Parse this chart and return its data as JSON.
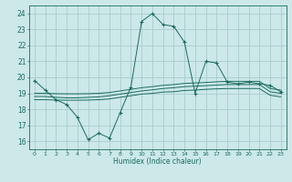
{
  "xlabel": "Humidex (Indice chaleur)",
  "background_color": "#cce8e8",
  "grid_color": "#aacccc",
  "line_color": "#1a6b5e",
  "xlim": [
    -0.5,
    23.5
  ],
  "ylim": [
    15.5,
    24.5
  ],
  "yticks": [
    16,
    17,
    18,
    19,
    20,
    21,
    22,
    23,
    24
  ],
  "xticks": [
    0,
    1,
    2,
    3,
    4,
    5,
    6,
    7,
    8,
    9,
    10,
    11,
    12,
    13,
    14,
    15,
    16,
    17,
    18,
    19,
    20,
    21,
    22,
    23
  ],
  "main_line_y": [
    19.8,
    19.2,
    18.6,
    18.3,
    17.5,
    16.1,
    16.5,
    16.2,
    17.8,
    19.4,
    23.5,
    24.0,
    23.3,
    23.2,
    22.2,
    19.0,
    21.0,
    20.9,
    19.7,
    19.6,
    19.7,
    19.6,
    19.5,
    19.1
  ],
  "line2_y": [
    18.8,
    18.8,
    18.75,
    18.72,
    18.72,
    18.75,
    18.78,
    18.85,
    18.95,
    19.05,
    19.15,
    19.22,
    19.3,
    19.35,
    19.42,
    19.45,
    19.48,
    19.52,
    19.55,
    19.55,
    19.55,
    19.55,
    19.1,
    19.0
  ],
  "line3_y": [
    18.6,
    18.6,
    18.58,
    18.57,
    18.57,
    18.58,
    18.6,
    18.65,
    18.75,
    18.85,
    18.95,
    19.0,
    19.08,
    19.1,
    19.18,
    19.2,
    19.25,
    19.28,
    19.3,
    19.3,
    19.3,
    19.3,
    18.88,
    18.78
  ],
  "line4_y": [
    19.0,
    19.0,
    18.98,
    18.97,
    18.97,
    18.98,
    19.0,
    19.05,
    19.15,
    19.25,
    19.35,
    19.42,
    19.5,
    19.55,
    19.62,
    19.65,
    19.68,
    19.72,
    19.75,
    19.75,
    19.75,
    19.75,
    19.3,
    19.2
  ]
}
